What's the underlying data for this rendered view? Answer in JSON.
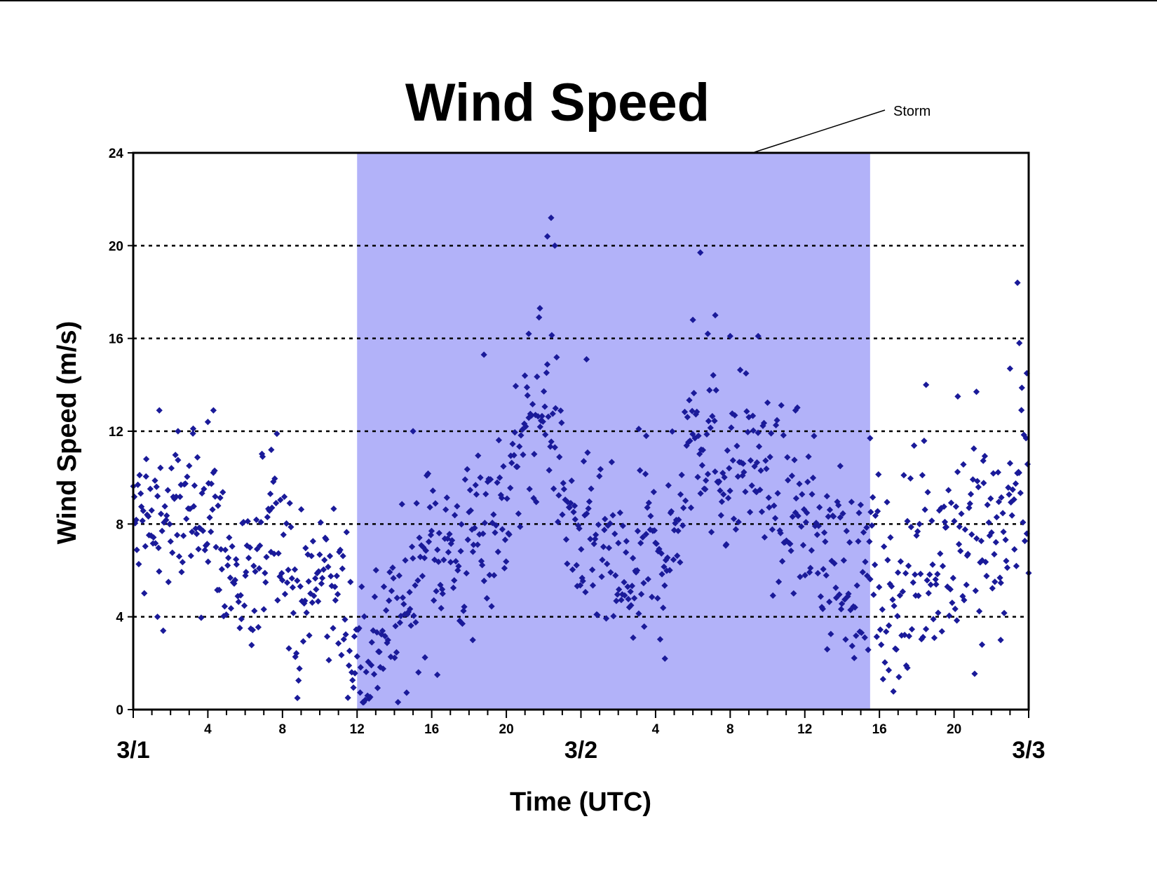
{
  "chart_data": {
    "type": "scatter",
    "title": "Wind Speed",
    "xlabel": "Time (UTC)",
    "ylabel": "Wind Speed (m/s)",
    "x_unit": "hours since 3/1 00 UTC",
    "xlim": [
      0,
      48
    ],
    "ylim": [
      0,
      24
    ],
    "y_ticks": [
      "0",
      "4",
      "8",
      "12",
      "16",
      "20",
      "24"
    ],
    "x_hour_labels": [
      {
        "x": 4,
        "label": "4"
      },
      {
        "x": 8,
        "label": "8"
      },
      {
        "x": 12,
        "label": "12"
      },
      {
        "x": 16,
        "label": "16"
      },
      {
        "x": 20,
        "label": "20"
      },
      {
        "x": 28,
        "label": "4"
      },
      {
        "x": 32,
        "label": "8"
      },
      {
        "x": 36,
        "label": "12"
      },
      {
        "x": 40,
        "label": "16"
      },
      {
        "x": 44,
        "label": "20"
      }
    ],
    "x_date_labels": [
      {
        "x": 0,
        "label": "3/1"
      },
      {
        "x": 24,
        "label": "3/2"
      },
      {
        "x": 48,
        "label": "3/3"
      }
    ],
    "grid": "horizontal dotted at 4,8,12,16,20",
    "shaded_region": {
      "label": "Storm",
      "x_start": 12,
      "x_end": 39.5,
      "color": "#b2b2f9"
    },
    "marker_color": "#1a1a99",
    "series": [
      {
        "name": "",
        "trend": [
          [
            0,
            7.8
          ],
          [
            0.5,
            8.0
          ],
          [
            1,
            7.7
          ],
          [
            1.5,
            8.2
          ],
          [
            2,
            7.9
          ],
          [
            2.5,
            8.4
          ],
          [
            3,
            8.0
          ],
          [
            3.5,
            8.0
          ],
          [
            4,
            8.6
          ],
          [
            4.5,
            7.8
          ],
          [
            5,
            6.2
          ],
          [
            5.5,
            5.6
          ],
          [
            6,
            5.2
          ],
          [
            6.4,
            4.3
          ],
          [
            6.8,
            6.2
          ],
          [
            7.2,
            8.6
          ],
          [
            7.6,
            9.3
          ],
          [
            8,
            7.8
          ],
          [
            8.5,
            5.4
          ],
          [
            9,
            4.2
          ],
          [
            9.5,
            5.0
          ],
          [
            10,
            5.8
          ],
          [
            10.5,
            5.3
          ],
          [
            11,
            5.2
          ],
          [
            11.5,
            3.8
          ],
          [
            12,
            2.4
          ],
          [
            12.5,
            1.6
          ],
          [
            13,
            3.0
          ],
          [
            13.5,
            3.8
          ],
          [
            14,
            3.6
          ],
          [
            14.5,
            4.2
          ],
          [
            15,
            5.4
          ],
          [
            15.5,
            6.6
          ],
          [
            16,
            7.4
          ],
          [
            16.5,
            7.2
          ],
          [
            17,
            6.8
          ],
          [
            17.5,
            6.6
          ],
          [
            18,
            7.2
          ],
          [
            18.5,
            8.2
          ],
          [
            19,
            8.4
          ],
          [
            19.5,
            8.2
          ],
          [
            20,
            9.0
          ],
          [
            20.5,
            10.4
          ],
          [
            21,
            11.4
          ],
          [
            21.5,
            12.4
          ],
          [
            22,
            13.4
          ],
          [
            22.5,
            12.6
          ],
          [
            23,
            9.6
          ],
          [
            23.5,
            7.6
          ],
          [
            24,
            7.0
          ],
          [
            24.5,
            6.8
          ],
          [
            25,
            6.6
          ],
          [
            25.5,
            6.4
          ],
          [
            26,
            5.9
          ],
          [
            26.5,
            5.2
          ],
          [
            27,
            5.6
          ],
          [
            27.5,
            6.4
          ],
          [
            28,
            6.6
          ],
          [
            28.5,
            7.0
          ],
          [
            29,
            7.6
          ],
          [
            29.5,
            10.2
          ],
          [
            30,
            12.6
          ],
          [
            30.5,
            12.0
          ],
          [
            31,
            11.0
          ],
          [
            31.5,
            10.6
          ],
          [
            32,
            10.0
          ],
          [
            32.5,
            10.6
          ],
          [
            33,
            11.2
          ],
          [
            33.5,
            10.6
          ],
          [
            34,
            9.6
          ],
          [
            34.5,
            8.8
          ],
          [
            35,
            8.6
          ],
          [
            35.5,
            8.6
          ],
          [
            36,
            8.4
          ],
          [
            36.5,
            7.8
          ],
          [
            37,
            7.0
          ],
          [
            37.5,
            6.6
          ],
          [
            38,
            6.2
          ],
          [
            38.5,
            5.8
          ],
          [
            39,
            5.6
          ],
          [
            39.5,
            6.0
          ],
          [
            40,
            5.0
          ],
          [
            40.5,
            4.6
          ],
          [
            41,
            5.2
          ],
          [
            41.5,
            5.4
          ],
          [
            42,
            6.2
          ],
          [
            42.5,
            6.8
          ],
          [
            43,
            7.0
          ],
          [
            43.5,
            7.4
          ],
          [
            44,
            7.4
          ],
          [
            44.5,
            7.6
          ],
          [
            45,
            7.6
          ],
          [
            45.5,
            7.4
          ],
          [
            46,
            8.0
          ],
          [
            46.5,
            7.8
          ],
          [
            47,
            8.0
          ],
          [
            47.5,
            9.6
          ],
          [
            48,
            10.6
          ]
        ],
        "spread_m_s": 1.8,
        "outliers": [
          [
            0.7,
            10.8
          ],
          [
            1.3,
            4.0
          ],
          [
            1.4,
            12.9
          ],
          [
            2.4,
            12.0
          ],
          [
            3.2,
            11.9
          ],
          [
            4.0,
            12.4
          ],
          [
            4.3,
            12.9
          ],
          [
            7.4,
            11.2
          ],
          [
            8.8,
            0.5
          ],
          [
            15.0,
            12.0
          ],
          [
            16.3,
            1.5
          ],
          [
            18.2,
            3.0
          ],
          [
            18.8,
            15.3
          ],
          [
            21.2,
            16.2
          ],
          [
            21.8,
            17.3
          ],
          [
            22.2,
            20.4
          ],
          [
            22.4,
            21.2
          ],
          [
            22.6,
            20.0
          ],
          [
            24.3,
            15.1
          ],
          [
            26.8,
            3.1
          ],
          [
            27.1,
            12.1
          ],
          [
            27.5,
            11.8
          ],
          [
            28.5,
            2.2
          ],
          [
            30.0,
            16.8
          ],
          [
            30.4,
            19.7
          ],
          [
            30.8,
            16.2
          ],
          [
            31.2,
            17.0
          ],
          [
            32.0,
            16.1
          ],
          [
            33.5,
            16.1
          ],
          [
            35.5,
            12.9
          ],
          [
            37.2,
            2.6
          ],
          [
            37.9,
            10.5
          ],
          [
            39.5,
            11.7
          ],
          [
            40.5,
            1.7
          ],
          [
            41.5,
            1.8
          ],
          [
            42.5,
            14.0
          ],
          [
            44.2,
            13.5
          ],
          [
            45.2,
            13.7
          ],
          [
            45.5,
            2.8
          ],
          [
            46.5,
            3.0
          ],
          [
            47.0,
            14.7
          ],
          [
            47.4,
            18.4
          ],
          [
            47.5,
            15.8
          ],
          [
            47.9,
            14.5
          ]
        ]
      }
    ],
    "annotations": [
      {
        "text": "Storm",
        "points_to": "shaded storm region"
      }
    ]
  }
}
